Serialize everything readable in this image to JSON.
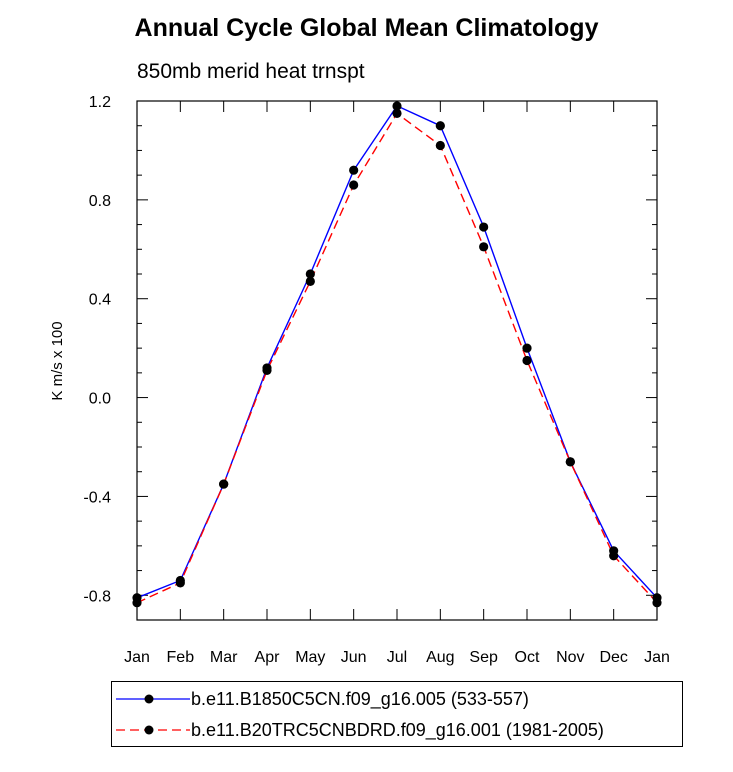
{
  "title": "Annual Cycle Global Mean Climatology",
  "subtitle": "850mb merid heat trnspt",
  "chart_data": {
    "type": "line",
    "ylabel": "K m/s x 100",
    "xlabel": "",
    "categories": [
      "Jan",
      "Feb",
      "Mar",
      "Apr",
      "May",
      "Jun",
      "Jul",
      "Aug",
      "Sep",
      "Oct",
      "Nov",
      "Dec",
      "Jan"
    ],
    "ylim": [
      -0.9,
      1.2
    ],
    "yticks": [
      -0.8,
      -0.4,
      0.0,
      0.4,
      0.8,
      1.2
    ],
    "ytick_labels": [
      "-0.8",
      "-0.4",
      "0.0",
      "0.4",
      "0.8",
      "1.2"
    ],
    "grid": false,
    "legend_position": "bottom",
    "series": [
      {
        "name": "b.e11.B1850C5CN.f09_g16.005 (533-557)",
        "color": "#0000ff",
        "dash": "solid",
        "marker": "filled-circle",
        "values": [
          -0.81,
          -0.74,
          -0.35,
          0.12,
          0.5,
          0.92,
          1.18,
          1.1,
          0.69,
          0.2,
          -0.26,
          -0.62,
          -0.81
        ]
      },
      {
        "name": "b.e11.B20TRC5CNBDRD.f09_g16.001 (1981-2005)",
        "color": "#ff0000",
        "dash": "dashed",
        "marker": "filled-circle",
        "values": [
          -0.83,
          -0.75,
          -0.35,
          0.11,
          0.47,
          0.86,
          1.15,
          1.02,
          0.61,
          0.15,
          -0.26,
          -0.64,
          -0.83
        ]
      }
    ]
  }
}
